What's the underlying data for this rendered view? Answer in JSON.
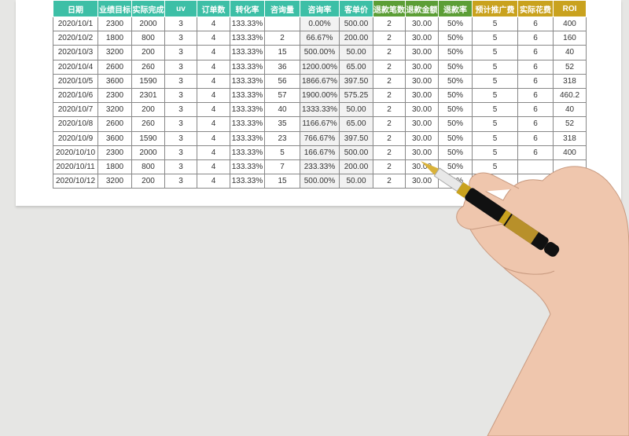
{
  "table": {
    "header": [
      "日期",
      "业绩目标",
      "实际完成",
      "uv",
      "订单数",
      "转化率",
      "咨询量",
      "咨询率",
      "客单价",
      "退款笔数",
      "退款金额",
      "退款率",
      "预计推广费",
      "实际花费",
      "ROI"
    ],
    "rows": [
      [
        "2020/10/1",
        "2300",
        "2000",
        "3",
        "4",
        "133.33%",
        null,
        "0.00%",
        "500.00",
        "2",
        "30.00",
        "50%",
        "5",
        "6",
        "400"
      ],
      [
        "2020/10/2",
        "1800",
        "800",
        "3",
        "4",
        "133.33%",
        "2",
        "66.67%",
        "200.00",
        "2",
        "30.00",
        "50%",
        "5",
        "6",
        "160"
      ],
      [
        "2020/10/3",
        "3200",
        "200",
        "3",
        "4",
        "133.33%",
        "15",
        "500.00%",
        "50.00",
        "2",
        "30.00",
        "50%",
        "5",
        "6",
        "40"
      ],
      [
        "2020/10/4",
        "2600",
        "260",
        "3",
        "4",
        "133.33%",
        "36",
        "1200.00%",
        "65.00",
        "2",
        "30.00",
        "50%",
        "5",
        "6",
        "52"
      ],
      [
        "2020/10/5",
        "3600",
        "1590",
        "3",
        "4",
        "133.33%",
        "56",
        "1866.67%",
        "397.50",
        "2",
        "30.00",
        "50%",
        "5",
        "6",
        "318"
      ],
      [
        "2020/10/6",
        "2300",
        "2301",
        "3",
        "4",
        "133.33%",
        "57",
        "1900.00%",
        "575.25",
        "2",
        "30.00",
        "50%",
        "5",
        "6",
        "460.2"
      ],
      [
        "2020/10/7",
        "3200",
        "200",
        "3",
        "4",
        "133.33%",
        "40",
        "1333.33%",
        "50.00",
        "2",
        "30.00",
        "50%",
        "5",
        "6",
        "40"
      ],
      [
        "2020/10/8",
        "2600",
        "260",
        "3",
        "4",
        "133.33%",
        "35",
        "1166.67%",
        "65.00",
        "2",
        "30.00",
        "50%",
        "5",
        "6",
        "52"
      ],
      [
        "2020/10/9",
        "3600",
        "1590",
        "3",
        "4",
        "133.33%",
        "23",
        "766.67%",
        "397.50",
        "2",
        "30.00",
        "50%",
        "5",
        "6",
        "318"
      ],
      [
        "2020/10/10",
        "2300",
        "2000",
        "3",
        "4",
        "133.33%",
        "5",
        "166.67%",
        "500.00",
        "2",
        "30.00",
        "50%",
        "5",
        "6",
        "400"
      ],
      [
        "2020/10/11",
        "1800",
        "800",
        "3",
        "4",
        "133.33%",
        "7",
        "233.33%",
        "200.00",
        "2",
        "30.00",
        "50%",
        "5",
        null,
        null
      ],
      [
        "2020/10/12",
        "3200",
        "200",
        "3",
        "4",
        "133.33%",
        "15",
        "500.00%",
        "50.00",
        "2",
        "30.00",
        "50%",
        null,
        null,
        null
      ]
    ]
  }
}
